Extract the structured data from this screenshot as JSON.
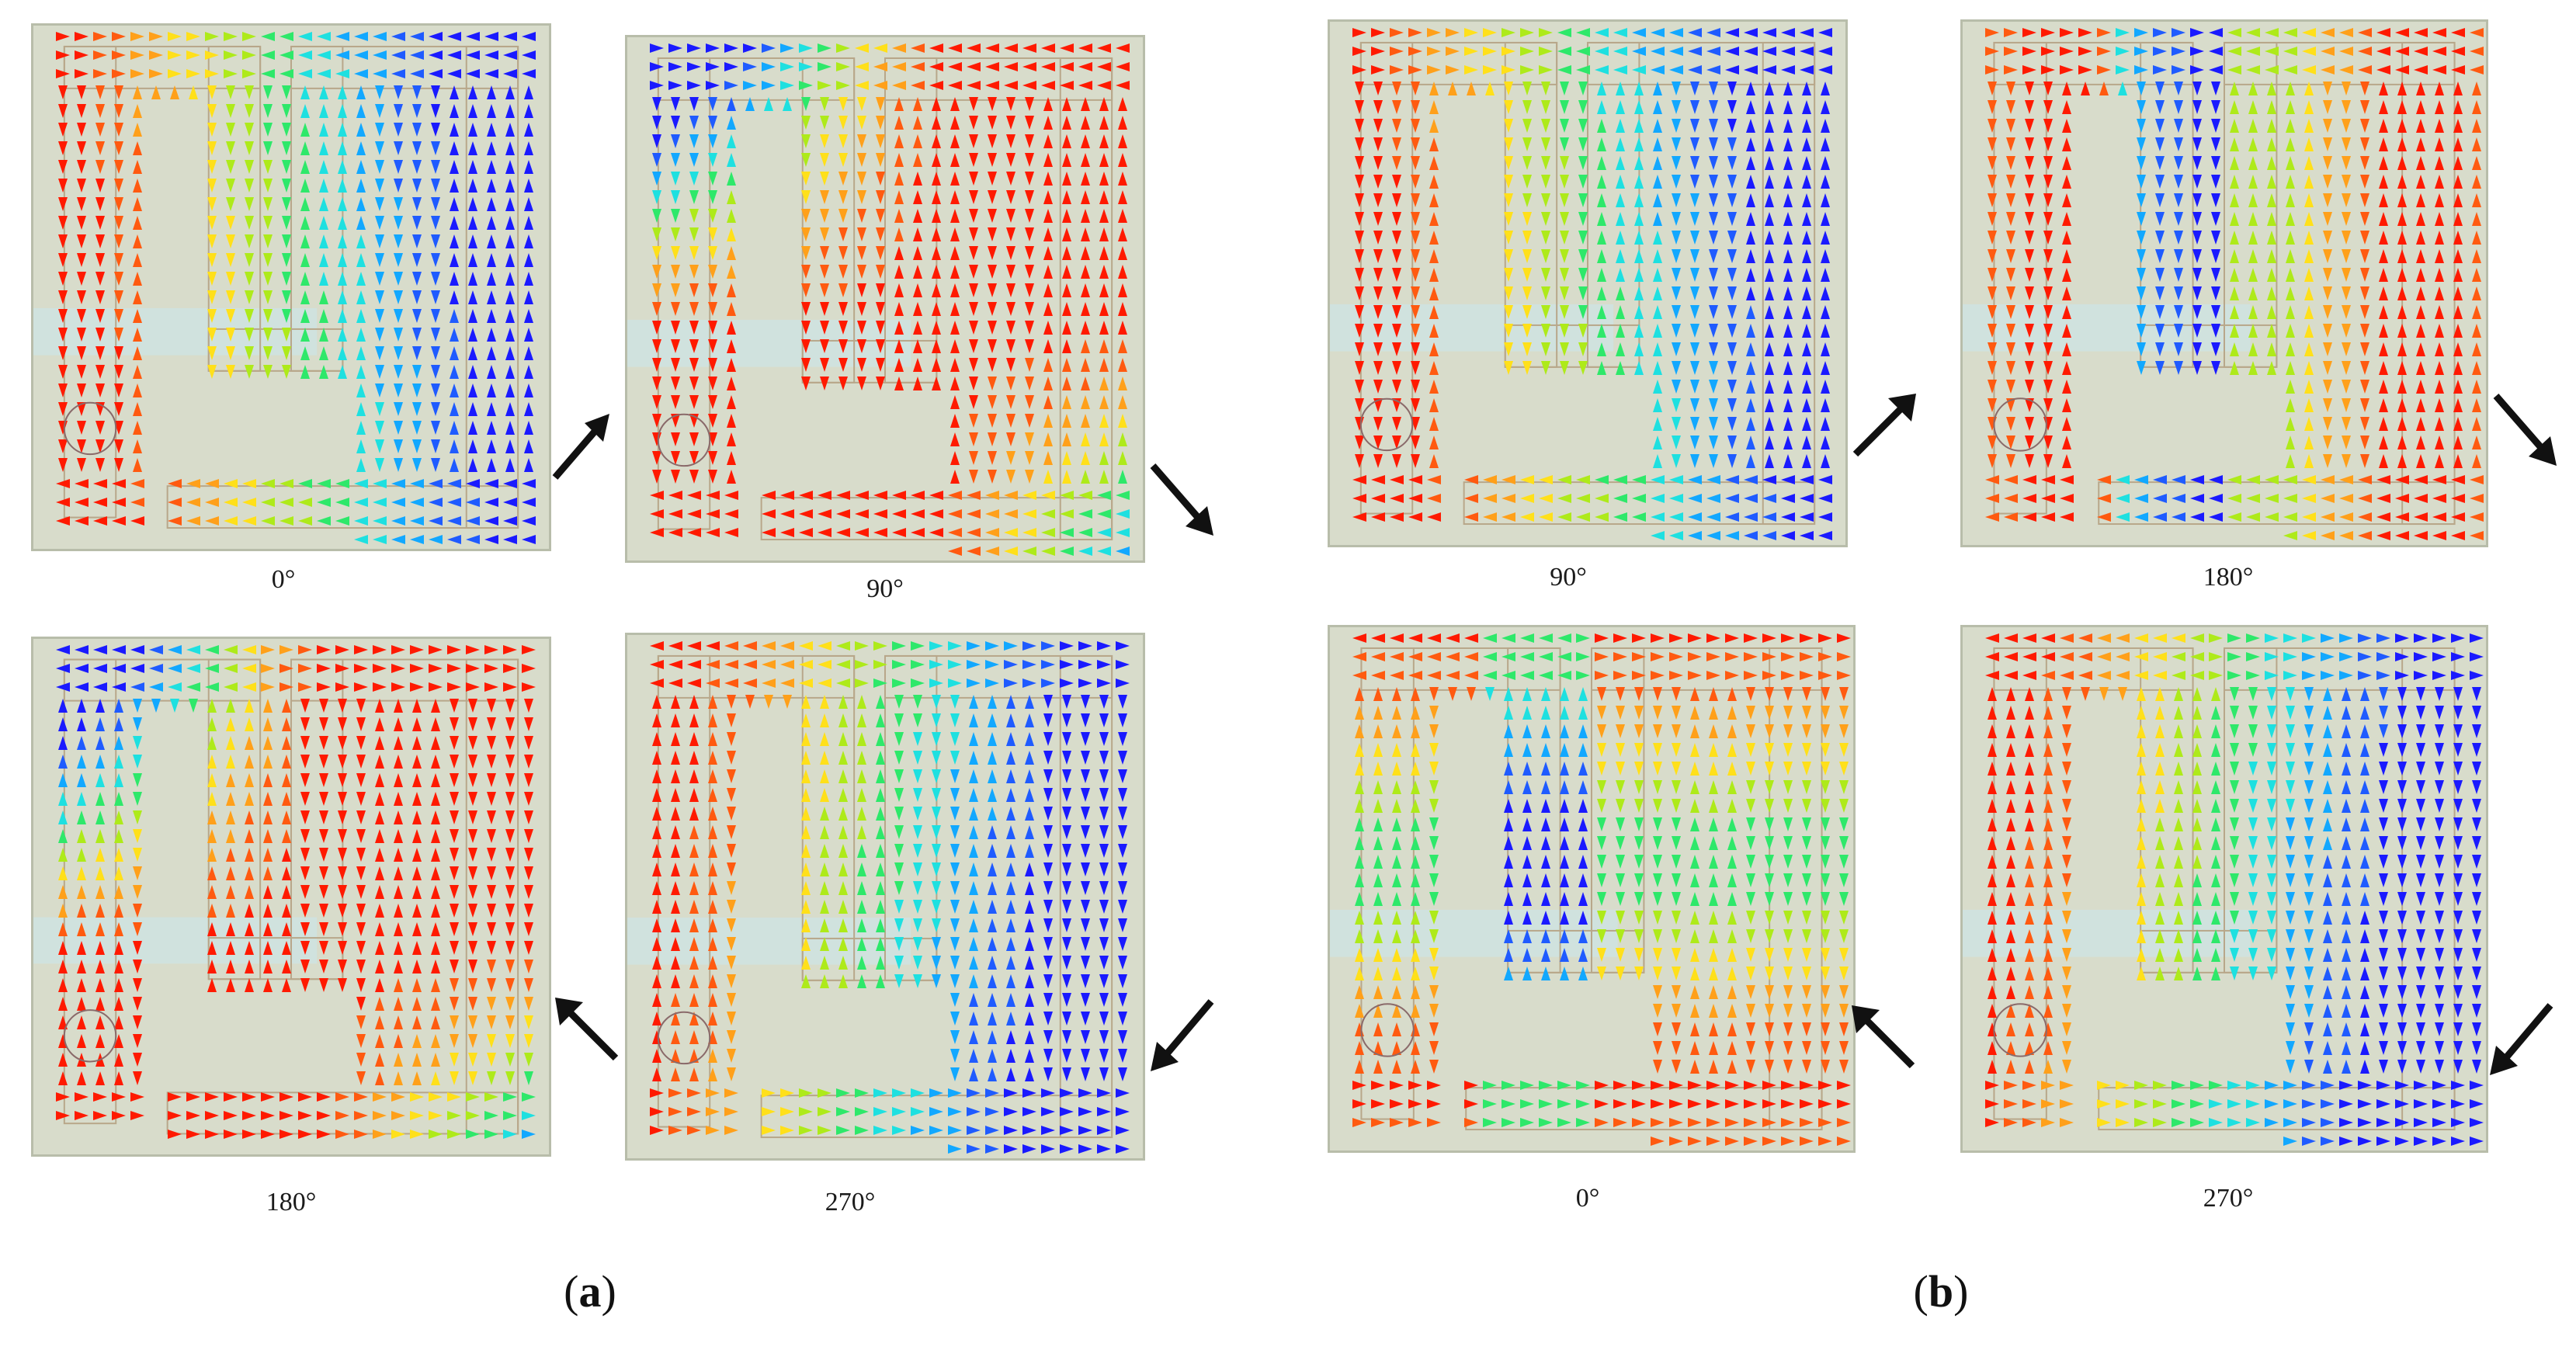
{
  "groups": [
    {
      "letter": "a",
      "panels": [
        {
          "label": "0°",
          "field_pattern": "left-red-right-blue",
          "rotation_arrow": "north-east"
        },
        {
          "label": "90°",
          "field_pattern": "mostly-red",
          "rotation_arrow": "south-east"
        },
        {
          "label": "180°",
          "field_pattern": "mostly-red-reversed",
          "rotation_arrow": "north-west"
        },
        {
          "label": "270°",
          "field_pattern": "left-red-right-blue-reversed",
          "rotation_arrow": "south-west"
        }
      ]
    },
    {
      "letter": "b",
      "panels": [
        {
          "label": "90°",
          "field_pattern": "left-red-right-blue",
          "rotation_arrow": "north-east"
        },
        {
          "label": "180°",
          "field_pattern": "mixed-yellow",
          "rotation_arrow": "south-east"
        },
        {
          "label": "0°",
          "field_pattern": "mixed-yellow-reversed",
          "rotation_arrow": "north-west"
        },
        {
          "label": "270°",
          "field_pattern": "left-red-right-blue-reversed",
          "rotation_arrow": "south-west"
        }
      ]
    }
  ],
  "colors": {
    "substrate": "#d8dccb",
    "patch_line": "#b8a78a",
    "feed_strip": "#cfe3e2",
    "high_current": "#ff1a00",
    "low_current": "#1a1aff"
  }
}
